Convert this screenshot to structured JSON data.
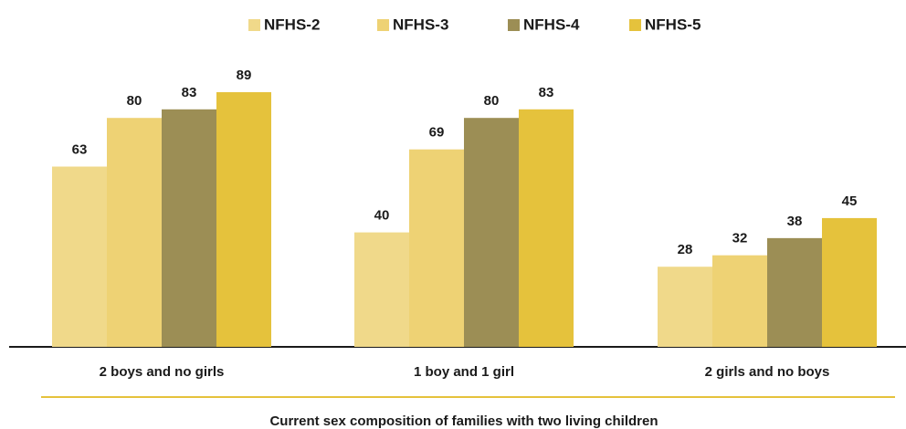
{
  "chart_data": {
    "type": "bar",
    "xlabel": "Current sex composition of families with two living children",
    "categories": [
      "2 boys and no girls",
      "1 boy and 1 girl",
      "2 girls and no boys"
    ],
    "series": [
      {
        "name": "NFHS-2",
        "color": "#f0d98a",
        "values": [
          63,
          40,
          28
        ]
      },
      {
        "name": "NFHS-3",
        "color": "#eed274",
        "values": [
          80,
          69,
          32
        ]
      },
      {
        "name": "NFHS-4",
        "color": "#9c8e55",
        "values": [
          83,
          80,
          38
        ]
      },
      {
        "name": "NFHS-5",
        "color": "#e5c23c",
        "values": [
          89,
          83,
          45
        ]
      }
    ],
    "ylim": [
      0,
      100
    ]
  }
}
